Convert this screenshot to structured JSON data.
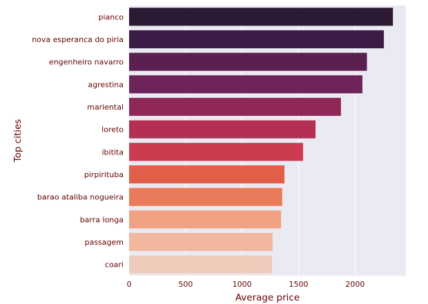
{
  "chart_data": {
    "type": "bar",
    "orientation": "horizontal",
    "categories": [
      "pianco",
      "nova esperanca do piria",
      "engenheiro navarro",
      "agrestina",
      "mariental",
      "loreto",
      "ibitita",
      "pirpirituba",
      "barao ataliba nogueira",
      "barra longa",
      "passagem",
      "coari"
    ],
    "values": [
      2335,
      2255,
      2105,
      2065,
      1875,
      1650,
      1540,
      1375,
      1355,
      1345,
      1270,
      1265
    ],
    "xlabel": "Average price",
    "ylabel": "Top cities",
    "xlim": [
      0,
      2450
    ],
    "xticks": [
      0,
      500,
      1000,
      1500,
      2000
    ],
    "grid": true,
    "colors": {
      "background": "#eaeaf2",
      "grid": "#ffffff",
      "text": "#660000",
      "bars": [
        "#2c1a35",
        "#3b1c46",
        "#5b2050",
        "#6e2458",
        "#8f2758",
        "#b52e54",
        "#cc3b50",
        "#e15e48",
        "#e97b5b",
        "#f0a283",
        "#f1b79f",
        "#efcbbc"
      ]
    }
  }
}
